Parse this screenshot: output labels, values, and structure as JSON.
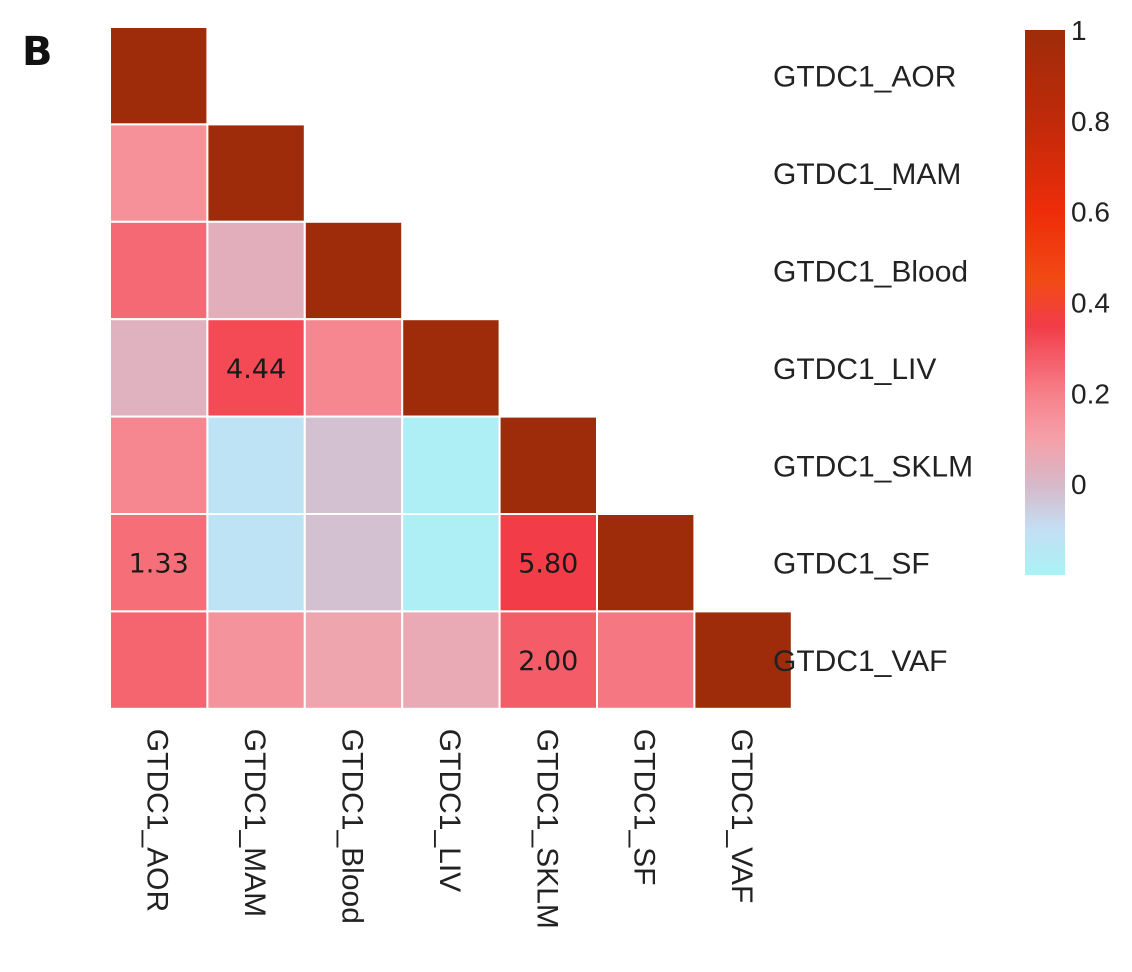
{
  "panel_label": "B",
  "chart_data": {
    "type": "heatmap",
    "layout": "lower-triangular",
    "rows": [
      "GTDC1_AOR",
      "GTDC1_MAM",
      "GTDC1_Blood",
      "GTDC1_LIV",
      "GTDC1_SKLM",
      "GTDC1_SF",
      "GTDC1_VAF"
    ],
    "columns": [
      "GTDC1_AOR",
      "GTDC1_MAM",
      "GTDC1_Blood",
      "GTDC1_LIV",
      "GTDC1_SKLM",
      "GTDC1_SF",
      "GTDC1_VAF"
    ],
    "values": [
      [
        1.0
      ],
      [
        0.15,
        1.0
      ],
      [
        0.25,
        0.04,
        1.0
      ],
      [
        0.03,
        0.32,
        0.18,
        1.0
      ],
      [
        0.18,
        -0.12,
        -0.02,
        -0.18,
        1.0
      ],
      [
        0.24,
        -0.12,
        -0.02,
        -0.18,
        0.35,
        1.0
      ],
      [
        0.26,
        0.14,
        0.08,
        0.06,
        0.28,
        0.22,
        1.0
      ]
    ],
    "cell_labels": [
      {
        "row": 3,
        "col": 1,
        "text": "4.44"
      },
      {
        "row": 5,
        "col": 0,
        "text": "1.33"
      },
      {
        "row": 5,
        "col": 4,
        "text": "5.80"
      },
      {
        "row": 6,
        "col": 4,
        "text": "2.00"
      }
    ],
    "colorbar": {
      "range": [
        -0.2,
        1
      ],
      "ticks": [
        {
          "value": 1,
          "label": "1"
        },
        {
          "value": 0.8,
          "label": "0.8"
        },
        {
          "value": 0.6,
          "label": "0.6"
        },
        {
          "value": 0.4,
          "label": "0.4"
        },
        {
          "value": 0.2,
          "label": "0.2"
        },
        {
          "value": 0,
          "label": "0"
        }
      ],
      "stops": [
        {
          "value": -0.2,
          "color": "#a9f2f5"
        },
        {
          "value": -0.1,
          "color": "#c3dff4"
        },
        {
          "value": 0.0,
          "color": "#d7b8c8"
        },
        {
          "value": 0.1,
          "color": "#f5a0a8"
        },
        {
          "value": 0.2,
          "color": "#f6808a"
        },
        {
          "value": 0.35,
          "color": "#f23c48"
        },
        {
          "value": 0.45,
          "color": "#f24a14"
        },
        {
          "value": 0.6,
          "color": "#ee2c0a"
        },
        {
          "value": 0.8,
          "color": "#c02a0a"
        },
        {
          "value": 1.0,
          "color": "#9e2c0a"
        }
      ]
    },
    "grid_color": "#ffffff"
  }
}
